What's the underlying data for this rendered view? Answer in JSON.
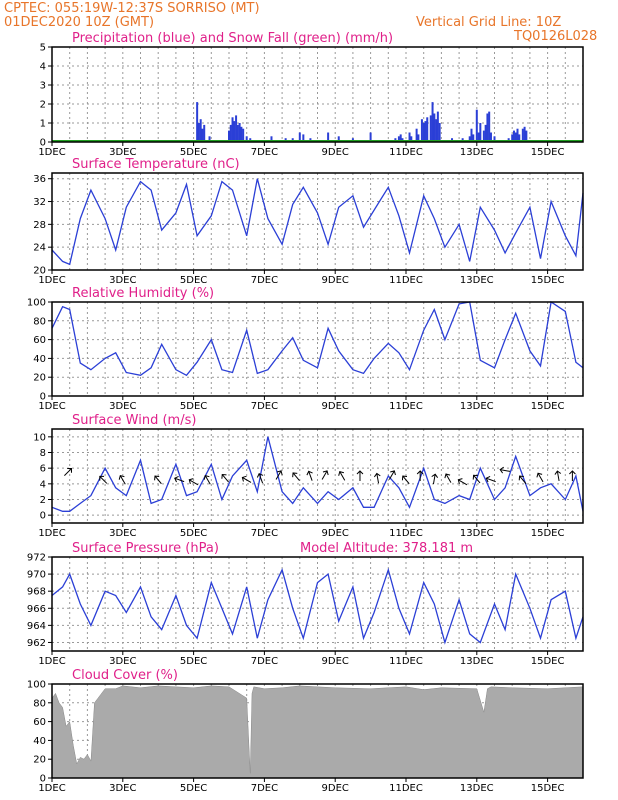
{
  "header": {
    "line1": "CPTEC:   055:19W-12:37S   SORRISO (MT)",
    "line2": "01DEC2020 10Z (GMT)",
    "grid_note": "Vertical Grid Line: 10Z",
    "code": "TQ0126L028"
  },
  "colors": {
    "header": "#e8752a",
    "title": "#e0208a",
    "line": "#2b3fd6",
    "snow": "#20a020",
    "cloud": "#aaaaaa"
  },
  "chart_data": [
    {
      "id": "precip",
      "type": "bar",
      "title": "Precipitation (blue) and Snow Fall (green) (mm/h)",
      "x_ticks": [
        "1DEC",
        "3DEC",
        "5DEC",
        "7DEC",
        "9DEC",
        "11DEC",
        "13DEC",
        "15DEC"
      ],
      "ylim": [
        0,
        5
      ],
      "yticks": [
        0,
        1,
        2,
        3,
        4,
        5
      ],
      "grid": true,
      "series": [
        {
          "name": "precipitation",
          "color": "#2b3fd6",
          "points": [
            [
              4.1,
              2.1
            ],
            [
              4.15,
              1.0
            ],
            [
              4.2,
              1.2
            ],
            [
              4.25,
              0.7
            ],
            [
              4.3,
              0.9
            ],
            [
              4.45,
              0.3
            ],
            [
              5.0,
              0.6
            ],
            [
              5.05,
              0.9
            ],
            [
              5.1,
              1.3
            ],
            [
              5.15,
              1.1
            ],
            [
              5.2,
              1.4
            ],
            [
              5.25,
              0.9
            ],
            [
              5.3,
              1.0
            ],
            [
              5.35,
              0.8
            ],
            [
              5.4,
              0.7
            ],
            [
              5.5,
              0.3
            ],
            [
              5.6,
              0.2
            ],
            [
              6.2,
              0.3
            ],
            [
              6.6,
              0.2
            ],
            [
              6.8,
              0.2
            ],
            [
              7.0,
              0.5
            ],
            [
              7.1,
              0.4
            ],
            [
              7.3,
              0.2
            ],
            [
              7.8,
              0.5
            ],
            [
              8.1,
              0.3
            ],
            [
              8.5,
              0.2
            ],
            [
              9.0,
              0.5
            ],
            [
              9.6,
              0.1
            ],
            [
              9.7,
              0.2
            ],
            [
              9.8,
              0.3
            ],
            [
              9.85,
              0.4
            ],
            [
              9.9,
              0.2
            ],
            [
              10.1,
              0.5
            ],
            [
              10.15,
              0.3
            ],
            [
              10.3,
              0.7
            ],
            [
              10.35,
              0.4
            ],
            [
              10.45,
              1.2
            ],
            [
              10.5,
              1.0
            ],
            [
              10.55,
              1.1
            ],
            [
              10.6,
              1.3
            ],
            [
              10.7,
              1.4
            ],
            [
              10.75,
              2.1
            ],
            [
              10.8,
              1.5
            ],
            [
              10.85,
              1.2
            ],
            [
              10.9,
              1.6
            ],
            [
              10.95,
              1.0
            ],
            [
              11.3,
              0.2
            ],
            [
              11.6,
              0.2
            ],
            [
              11.8,
              0.3
            ],
            [
              11.85,
              0.7
            ],
            [
              11.9,
              0.4
            ],
            [
              12.0,
              1.7
            ],
            [
              12.05,
              0.5
            ],
            [
              12.1,
              1.0
            ],
            [
              12.2,
              0.6
            ],
            [
              12.25,
              0.9
            ],
            [
              12.3,
              1.5
            ],
            [
              12.35,
              1.6
            ],
            [
              12.4,
              0.5
            ],
            [
              12.5,
              0.3
            ],
            [
              12.9,
              0.2
            ],
            [
              13.0,
              0.4
            ],
            [
              13.05,
              0.6
            ],
            [
              13.1,
              0.5
            ],
            [
              13.15,
              0.7
            ],
            [
              13.2,
              0.4
            ],
            [
              13.3,
              0.7
            ],
            [
              13.35,
              0.8
            ],
            [
              13.4,
              0.6
            ]
          ]
        },
        {
          "name": "snow",
          "color": "#20a020",
          "points": []
        }
      ]
    },
    {
      "id": "temp",
      "type": "line",
      "title": "Surface Temperature (nC)",
      "x_ticks": [
        "1DEC",
        "3DEC",
        "5DEC",
        "7DEC",
        "9DEC",
        "11DEC",
        "13DEC",
        "15DEC"
      ],
      "ylim": [
        20,
        37
      ],
      "yticks": [
        20,
        24,
        28,
        32,
        36
      ],
      "grid": true,
      "x": [
        0,
        0.3,
        0.5,
        0.8,
        1.1,
        1.5,
        1.8,
        2.1,
        2.5,
        2.8,
        3.1,
        3.5,
        3.8,
        4.1,
        4.5,
        4.8,
        5.1,
        5.5,
        5.8,
        6.1,
        6.5,
        6.8,
        7.1,
        7.5,
        7.8,
        8.1,
        8.5,
        8.8,
        9.1,
        9.5,
        9.8,
        10.1,
        10.5,
        10.8,
        11.1,
        11.5,
        11.8,
        12.1,
        12.5,
        12.8,
        13.1,
        13.5,
        13.8,
        14.1,
        14.5,
        14.8,
        15.0
      ],
      "values": [
        23.5,
        21.5,
        21.0,
        29.0,
        34.0,
        29.0,
        23.5,
        31.0,
        35.5,
        34.0,
        27.0,
        30.0,
        35.0,
        26.0,
        29.5,
        35.5,
        34.0,
        26.0,
        36.0,
        29.0,
        24.5,
        31.5,
        34.5,
        30.0,
        24.5,
        31.0,
        33.0,
        27.5,
        30.5,
        34.5,
        29.5,
        23.0,
        33.0,
        29.0,
        24.0,
        28.0,
        21.5,
        31.0,
        27.0,
        23.0,
        26.5,
        31.0,
        22.0,
        32.0,
        26.0,
        22.5,
        33.5
      ]
    },
    {
      "id": "rh",
      "type": "line",
      "title": "Relative Humidity (%)",
      "x_ticks": [
        "1DEC",
        "3DEC",
        "5DEC",
        "7DEC",
        "9DEC",
        "11DEC",
        "13DEC",
        "15DEC"
      ],
      "ylim": [
        0,
        100
      ],
      "yticks": [
        0,
        20,
        40,
        60,
        80,
        100
      ],
      "grid": true,
      "x": [
        0,
        0.3,
        0.5,
        0.8,
        1.1,
        1.5,
        1.8,
        2.1,
        2.5,
        2.8,
        3.1,
        3.5,
        3.8,
        4.1,
        4.5,
        4.8,
        5.1,
        5.5,
        5.8,
        6.1,
        6.5,
        6.8,
        7.1,
        7.5,
        7.8,
        8.1,
        8.5,
        8.8,
        9.1,
        9.5,
        9.8,
        10.1,
        10.5,
        10.8,
        11.1,
        11.5,
        11.8,
        12.1,
        12.5,
        12.8,
        13.1,
        13.5,
        13.8,
        14.1,
        14.5,
        14.8,
        15.0
      ],
      "values": [
        72,
        95,
        92,
        35,
        28,
        40,
        46,
        25,
        22,
        30,
        55,
        28,
        22,
        36,
        60,
        28,
        25,
        70,
        24,
        28,
        48,
        62,
        38,
        30,
        72,
        48,
        28,
        24,
        40,
        56,
        46,
        28,
        70,
        92,
        60,
        98,
        100,
        38,
        30,
        60,
        88,
        48,
        32,
        100,
        90,
        36,
        30
      ]
    },
    {
      "id": "wind",
      "type": "line",
      "title": "Surface Wind (m/s)",
      "x_ticks": [
        "1DEC",
        "3DEC",
        "5DEC",
        "7DEC",
        "9DEC",
        "11DEC",
        "13DEC",
        "15DEC"
      ],
      "ylim": [
        -1,
        11
      ],
      "yticks": [
        0,
        2,
        4,
        6,
        8,
        10
      ],
      "grid": true,
      "x": [
        0,
        0.3,
        0.5,
        0.8,
        1.1,
        1.5,
        1.8,
        2.1,
        2.5,
        2.8,
        3.1,
        3.5,
        3.8,
        4.1,
        4.5,
        4.8,
        5.1,
        5.5,
        5.8,
        6.1,
        6.5,
        6.8,
        7.1,
        7.5,
        7.8,
        8.1,
        8.5,
        8.8,
        9.1,
        9.5,
        9.8,
        10.1,
        10.5,
        10.8,
        11.1,
        11.5,
        11.8,
        12.1,
        12.5,
        12.8,
        13.1,
        13.5,
        13.8,
        14.1,
        14.5,
        14.8,
        15.0
      ],
      "values": [
        1.0,
        0.5,
        0.5,
        1.5,
        2.5,
        6.0,
        3.5,
        2.5,
        7.0,
        1.5,
        2.0,
        6.5,
        2.5,
        3.0,
        6.5,
        2.0,
        5.0,
        7.0,
        3.0,
        10.0,
        3.0,
        1.5,
        3.5,
        1.5,
        3.0,
        2.0,
        3.5,
        1.0,
        1.0,
        5.0,
        3.5,
        1.0,
        6.0,
        2.0,
        1.5,
        2.5,
        2.0,
        6.0,
        2.0,
        3.5,
        7.5,
        2.5,
        3.5,
        4.0,
        2.0,
        5.0,
        0.5
      ],
      "arrows": [
        [
          0.45,
          5.5,
          315
        ],
        [
          1.45,
          4.5,
          225
        ],
        [
          2.0,
          4.5,
          240
        ],
        [
          3.0,
          4.5,
          230
        ],
        [
          3.6,
          4.5,
          200
        ],
        [
          4.0,
          4.2,
          210
        ],
        [
          4.4,
          4.5,
          240
        ],
        [
          4.9,
          4.7,
          230
        ],
        [
          5.5,
          4.5,
          210
        ],
        [
          5.9,
          4.7,
          250
        ],
        [
          6.4,
          5.1,
          300
        ],
        [
          6.9,
          4.9,
          230
        ],
        [
          7.3,
          5.0,
          250
        ],
        [
          7.7,
          5.1,
          300
        ],
        [
          8.2,
          5.0,
          240
        ],
        [
          8.7,
          5.0,
          270
        ],
        [
          9.2,
          4.7,
          260
        ],
        [
          9.6,
          5.1,
          300
        ],
        [
          10.0,
          4.5,
          230
        ],
        [
          10.4,
          5.0,
          270
        ],
        [
          10.8,
          4.6,
          280
        ],
        [
          11.2,
          4.7,
          240
        ],
        [
          11.6,
          4.2,
          210
        ],
        [
          12.0,
          4.6,
          230
        ],
        [
          12.4,
          4.5,
          200
        ],
        [
          12.8,
          5.7,
          190
        ],
        [
          13.3,
          4.5,
          230
        ],
        [
          13.8,
          4.8,
          240
        ],
        [
          14.3,
          5.0,
          260
        ],
        [
          14.7,
          5.0,
          270
        ]
      ]
    },
    {
      "id": "pressure",
      "type": "line",
      "title": "Surface Pressure (hPa)",
      "annotation": "Model Altitude: 378.181 m",
      "x_ticks": [
        "1DEC",
        "3DEC",
        "5DEC",
        "7DEC",
        "9DEC",
        "11DEC",
        "13DEC",
        "15DEC"
      ],
      "ylim": [
        961,
        972
      ],
      "yticks": [
        962,
        964,
        966,
        968,
        970,
        972
      ],
      "grid": true,
      "x": [
        0,
        0.3,
        0.5,
        0.8,
        1.1,
        1.5,
        1.8,
        2.1,
        2.5,
        2.8,
        3.1,
        3.5,
        3.8,
        4.1,
        4.5,
        4.8,
        5.1,
        5.5,
        5.8,
        6.1,
        6.5,
        6.8,
        7.1,
        7.5,
        7.8,
        8.1,
        8.5,
        8.8,
        9.1,
        9.5,
        9.8,
        10.1,
        10.5,
        10.8,
        11.1,
        11.5,
        11.8,
        12.1,
        12.5,
        12.8,
        13.1,
        13.5,
        13.8,
        14.1,
        14.5,
        14.8,
        15.0
      ],
      "values": [
        967.5,
        968.5,
        970.0,
        966.5,
        964.0,
        968.0,
        967.5,
        965.5,
        968.5,
        965.0,
        963.5,
        967.5,
        964.0,
        962.5,
        969.0,
        966.0,
        963.0,
        968.5,
        962.5,
        967.0,
        970.5,
        966.0,
        962.5,
        969.0,
        970.0,
        964.5,
        968.5,
        962.5,
        965.5,
        970.5,
        966.0,
        963.0,
        969.0,
        966.5,
        962.0,
        967.0,
        963.0,
        962.0,
        966.5,
        963.5,
        970.0,
        966.0,
        962.5,
        967.0,
        968.0,
        962.5,
        965.0
      ]
    },
    {
      "id": "cloud",
      "type": "area",
      "title": "Cloud Cover (%)",
      "x_ticks": [
        "1DEC",
        "3DEC",
        "5DEC",
        "7DEC",
        "9DEC",
        "11DEC",
        "13DEC",
        "15DEC"
      ],
      "ylim": [
        0,
        100
      ],
      "yticks": [
        0,
        20,
        40,
        60,
        80,
        100
      ],
      "grid": true,
      "x": [
        0,
        0.1,
        0.2,
        0.3,
        0.4,
        0.5,
        0.6,
        0.7,
        0.8,
        0.9,
        1.0,
        1.1,
        1.2,
        1.3,
        1.5,
        1.8,
        2.0,
        2.5,
        3.0,
        3.5,
        4.0,
        4.5,
        5.0,
        5.5,
        5.6,
        5.65,
        5.7,
        6.0,
        6.5,
        7.0,
        8.0,
        9.0,
        10.0,
        10.5,
        11.0,
        12.0,
        12.2,
        12.3,
        12.4,
        13.0,
        14.0,
        15.0
      ],
      "values": [
        85,
        90,
        80,
        75,
        55,
        60,
        35,
        15,
        22,
        20,
        25,
        18,
        80,
        85,
        95,
        95,
        98,
        96,
        98,
        97,
        96,
        98,
        97,
        85,
        5,
        90,
        97,
        95,
        96,
        98,
        96,
        95,
        97,
        94,
        96,
        95,
        70,
        95,
        97,
        96,
        95,
        97
      ]
    }
  ]
}
